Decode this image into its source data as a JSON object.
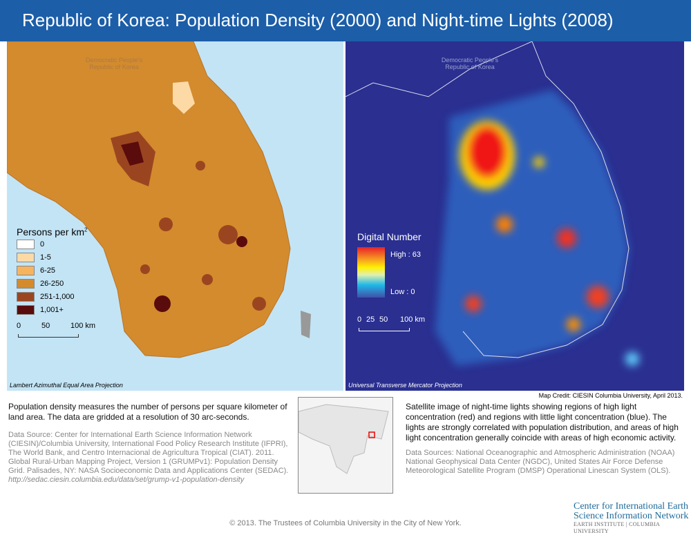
{
  "title": "Republic of Korea:  Population Density (2000) and Night-time Lights (2008)",
  "left_map": {
    "dprk_label": "Democratic People's Republic of Korea",
    "legend_title": "Persons per km",
    "legend_sup": "2",
    "legend": [
      {
        "label": "0",
        "color": "#ffffff"
      },
      {
        "label": "1-5",
        "color": "#fdd9a6"
      },
      {
        "label": "6-25",
        "color": "#f7b45e"
      },
      {
        "label": "26-250",
        "color": "#d38b2e"
      },
      {
        "label": "251-1,000",
        "color": "#9b4520"
      },
      {
        "label": "1,001+",
        "color": "#5a0c0c"
      }
    ],
    "scale": [
      "0",
      "50",
      "100 km"
    ],
    "projection": "Lambert Azimuthal Equal Area Projection"
  },
  "right_map": {
    "dprk_label": "Democratic People's Republic of Korea",
    "legend_title": "Digital Number",
    "high": "High : 63",
    "low": "Low : 0",
    "scale": [
      "0",
      "25",
      "50",
      "100 km"
    ],
    "projection": "Universal Transverse Mercator Projection"
  },
  "map_credit": "Map Credit: CIESIN Columbia University, April 2013.",
  "left_description": "Population density measures the number of persons per square kilometer of land area. The data are gridded at a resolution of 30 arc-seconds.",
  "left_source": "Data Source: Center for International Earth Science Information Network (CIESIN)/Columbia University, International Food Policy Research Institute (IFPRI), The World Bank, and Centro Internacional de Agricultura Tropical (CIAT). 2011. Global Rural-Urban Mapping Project, Version 1 (GRUMPv1): Population Density Grid. Palisades, NY: NASA Socioeconomic Data and Applications Center (SEDAC).",
  "left_url": "http://sedac.ciesin.columbia.edu/data/set/grump-v1-population-density",
  "right_description": "Satellite image of night-time lights showing regions of high light concentration (red) and regions with little light concentration (blue). The lights are strongly correlated with population distribution, and areas of high light concentration generally coincide with areas of high economic activity.",
  "right_source": "Data Sources: National Oceanographic and Atmospheric Administration (NOAA) National Geophysical Data Center (NGDC), United States Air Force Defense Meteorological Satellite Program (DMSP) Operational Linescan System (OLS).",
  "logo": {
    "line1": "Center for International Earth",
    "line2": "Science Information Network",
    "line3": "EARTH INSTITUTE | COLUMBIA UNIVERSITY"
  },
  "copyright": "© 2013. The Trustees of Columbia University in the City of New York."
}
